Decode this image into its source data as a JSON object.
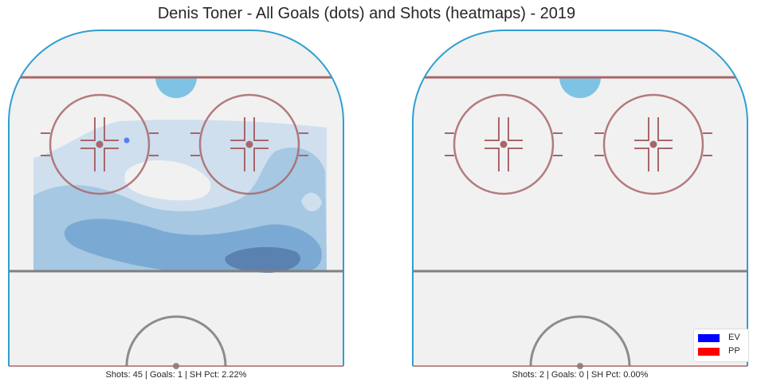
{
  "title": "Denis Toner - All Goals (dots) and Shots (heatmaps) - 2019",
  "chart_data": [
    {
      "type": "heatmap",
      "panel": "left",
      "caption": "Shots: 45 | Goals: 1 | SH Pct: 2.22%",
      "shots": 45,
      "goals": 1,
      "sh_pct": "2.22%",
      "heatmap_levels": 4,
      "goal_dots": [
        {
          "strength": "EV",
          "count": 1
        }
      ]
    },
    {
      "type": "heatmap",
      "panel": "right",
      "caption": "Shots: 2 | Goals: 0 | SH Pct: 0.00%",
      "shots": 2,
      "goals": 0,
      "sh_pct": "0.00%",
      "heatmap_levels": 0,
      "goal_dots": []
    }
  ],
  "legend": {
    "placement": "bottom-right",
    "items": [
      {
        "label": "EV",
        "color": "#0000ff"
      },
      {
        "label": "PP",
        "color": "#ff0000"
      }
    ]
  },
  "colors": {
    "ice": "#f1f1f1",
    "boards": "#2f9fd0",
    "goal_line": "#a8666a",
    "circles": "#a8666a",
    "crease": "#7ec3e3",
    "blue_line": "#7f7f7f",
    "center_circle": "#8c8c8c",
    "heat_levels": [
      "#cfdfee",
      "#a6c8e2",
      "#7aaad4",
      "#5b81b1"
    ],
    "goal_dot": "#5a7cf5"
  }
}
